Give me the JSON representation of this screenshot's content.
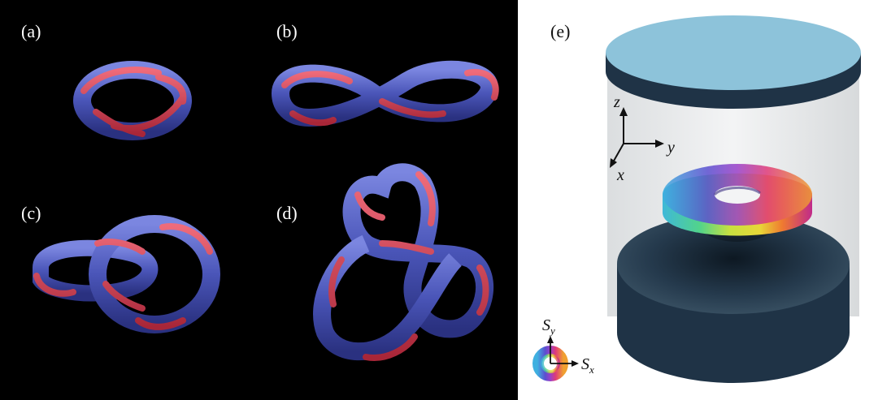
{
  "panels": {
    "a": {
      "label": "(a)"
    },
    "b": {
      "label": "(b)"
    },
    "c": {
      "label": "(c)"
    },
    "d": {
      "label": "(d)"
    },
    "e": {
      "label": "(e)"
    }
  },
  "axes": {
    "z": "z",
    "y": "y",
    "x": "x"
  },
  "color_wheel": {
    "sy_main": "S",
    "sy_sub": "y",
    "sx_main": "S",
    "sx_sub": "x"
  },
  "colors": {
    "tube_blue": "#4a55b8",
    "tube_red": "#c8384a",
    "cap_blue": "#8dc3da",
    "base_dark": "#1f3346"
  }
}
